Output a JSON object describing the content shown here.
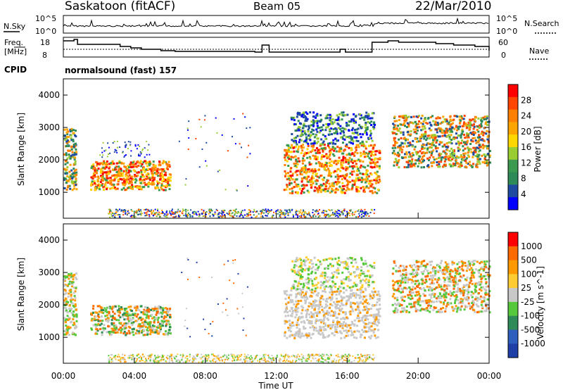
{
  "header": {
    "station": "Saskatoon (fitACF)",
    "beam": "Beam 05",
    "date": "22/Mar/2010",
    "cpid_label": "CPID",
    "cpid_text": "normalsound (fast) 157"
  },
  "top_panels": {
    "nsky_label": "N.Sky",
    "nsky_ticks": [
      "10^5",
      "10^0"
    ],
    "nsky_right_ticks": [
      "10^5",
      "10^0"
    ],
    "nsearch_label": "N.Search",
    "freq_label_1": "Freq.",
    "freq_label_2": "[MHz]",
    "freq_ticks": [
      "18",
      "8"
    ],
    "nave_ticks": [
      "60",
      "0"
    ],
    "nave_label": "Nave"
  },
  "colors": {
    "power": [
      "#0000ff",
      "#1e4aa0",
      "#2e8b57",
      "#3c9a50",
      "#9acd32",
      "#ffd700",
      "#ffa500",
      "#ff7f00",
      "#ff4500",
      "#ff0000"
    ],
    "velocity": [
      "#1f3fa8",
      "#2e5fbf",
      "#2e8b57",
      "#55c83c",
      "#c8c8c8",
      "#ffcc33",
      "#ff9900",
      "#ff6a00",
      "#ff0000"
    ],
    "ground": "#c0c0c0"
  },
  "chart_data": [
    {
      "type": "heatmap",
      "title": "",
      "xlabel": "",
      "ylabel": "Slant Range [km]",
      "ylim": [
        200,
        4500
      ],
      "xlim": [
        0,
        24
      ],
      "yticks": [
        "1000",
        "2000",
        "3000",
        "4000"
      ],
      "colorbar_label": "Power [dB]",
      "colorbar_ticks": [
        "28",
        "24",
        "20",
        "16",
        "12",
        "8",
        "4"
      ],
      "regions": [
        {
          "x": [
            0.0,
            0.6
          ],
          "y": [
            1100,
            3200
          ],
          "level": "mid-high"
        },
        {
          "x": [
            1.5,
            6.0
          ],
          "y": [
            1000,
            2100
          ],
          "level": "high"
        },
        {
          "x": [
            12.5,
            17.8
          ],
          "y": [
            900,
            2600
          ],
          "level": "high"
        },
        {
          "x": [
            13.0,
            17.5
          ],
          "y": [
            2600,
            3500
          ],
          "level": "low"
        },
        {
          "x": [
            18.5,
            24.0
          ],
          "y": [
            1800,
            3400
          ],
          "level": "mid-high"
        }
      ]
    },
    {
      "type": "heatmap",
      "title": "",
      "xlabel": "Time UT",
      "ylabel": "Slant Range [km]",
      "ylim": [
        200,
        4500
      ],
      "xlim": [
        0,
        24
      ],
      "xticks": [
        "00:00",
        "04:00",
        "08:00",
        "12:00",
        "16:00",
        "20:00",
        "00:00"
      ],
      "yticks": [
        "1000",
        "2000",
        "3000",
        "4000"
      ],
      "colorbar_label": "Velocity [m s^-1]",
      "colorbar_ticks": [
        "1000",
        "500",
        "100",
        "25",
        "-25",
        "-100",
        "-500",
        "-1000"
      ]
    }
  ]
}
